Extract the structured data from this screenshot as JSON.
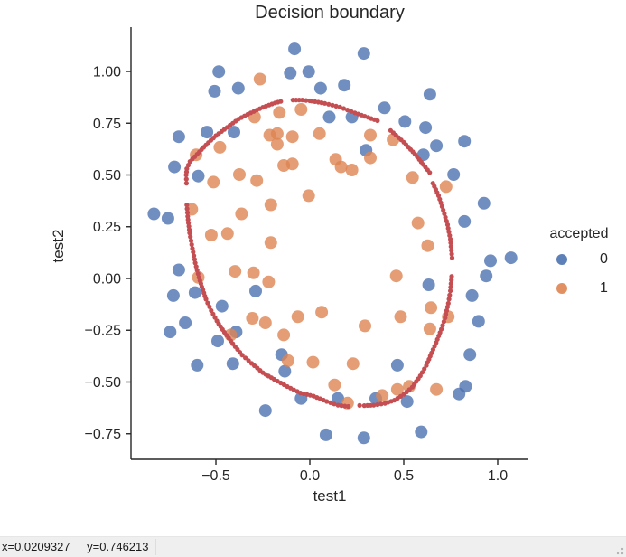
{
  "window": {
    "background": "#ffffff"
  },
  "statusbar": {
    "cursor_x_label": "x=0.0209327",
    "cursor_y_label": "y=0.746213"
  },
  "chart_data": {
    "type": "scatter",
    "title": "Decision boundary",
    "xlabel": "test1",
    "ylabel": "test2",
    "grid": false,
    "axis_color": "#262626",
    "tick_label_color": "#262626",
    "xlim": [
      -0.952,
      1.1635
    ],
    "ylim": [
      -0.8734,
      1.214
    ],
    "xticks": [
      -0.5,
      0.0,
      0.5,
      1.0
    ],
    "xtick_labels": [
      "−0.5",
      "0.0",
      "0.5",
      "1.0"
    ],
    "yticks": [
      1.0,
      0.75,
      0.5,
      0.25,
      0.0,
      -0.25,
      -0.5,
      -0.75
    ],
    "ytick_labels": [
      "1.00",
      "0.75",
      "0.50",
      "0.25",
      "0.00",
      "−0.25",
      "−0.50",
      "−0.75"
    ],
    "legend": {
      "title": "accepted",
      "position": "right",
      "entries": [
        {
          "label": "0",
          "color": "#4C72B0"
        },
        {
          "label": "1",
          "color": "#DD8452"
        }
      ]
    },
    "series": [
      {
        "name": "0",
        "color": "#4C72B0",
        "marker_radius": 7,
        "opacity": 0.8,
        "points": [
          [
            0.18376,
            0.93348
          ],
          [
            0.22408,
            0.77997
          ],
          [
            0.29896,
            0.61915
          ],
          [
            0.50634,
            0.75804
          ],
          [
            0.61578,
            0.7288
          ],
          [
            0.60426,
            0.59722
          ],
          [
            0.76555,
            0.50219
          ],
          [
            0.92684,
            0.3633
          ],
          [
            0.82316,
            0.27558
          ],
          [
            0.96141,
            0.085526
          ],
          [
            0.93836,
            0.012427
          ],
          [
            0.86348,
            -0.082602
          ],
          [
            0.89804,
            -0.20687
          ],
          [
            0.85196,
            -0.36769
          ],
          [
            0.82892,
            -0.5212
          ],
          [
            0.79435,
            -0.55775
          ],
          [
            0.59274,
            -0.7405
          ],
          [
            0.51786,
            -0.5943
          ],
          [
            0.46601,
            -0.41886
          ],
          [
            0.35081,
            -0.57968
          ],
          [
            0.28744,
            -0.76974
          ],
          [
            0.085829,
            -0.75512
          ],
          [
            0.14919,
            -0.57968
          ],
          [
            -0.13306,
            -0.4481
          ],
          [
            -0.40956,
            -0.41155
          ],
          [
            -0.39228,
            -0.25804
          ],
          [
            -0.74366,
            -0.25804
          ],
          [
            -0.69758,
            0.041667
          ],
          [
            -0.75518,
            0.2902
          ],
          [
            -0.69758,
            0.68494
          ],
          [
            -0.4038,
            0.70687
          ],
          [
            -0.38076,
            0.91886
          ],
          [
            -0.50749,
            0.90424
          ],
          [
            -0.54781,
            0.70687
          ],
          [
            0.10311,
            0.77997
          ],
          [
            0.057028,
            0.91886
          ],
          [
            -0.10426,
            0.99196
          ],
          [
            -0.081221,
            1.1089
          ],
          [
            0.28744,
            1.087
          ],
          [
            0.39689,
            0.82383
          ],
          [
            0.63882,
            0.88962
          ],
          [
            0.82316,
            0.66301
          ],
          [
            0.67339,
            0.64108
          ],
          [
            1.0709,
            0.10015
          ],
          [
            -0.046659,
            -0.57968
          ],
          [
            -0.23675,
            -0.63816
          ],
          [
            -0.15035,
            -0.36769
          ],
          [
            -0.49021,
            -0.3019
          ],
          [
            -0.46717,
            -0.13377
          ],
          [
            -0.28859,
            -0.060673
          ],
          [
            -0.61118,
            -0.067982
          ],
          [
            -0.66302,
            -0.21418
          ],
          [
            -0.59965,
            -0.41886
          ],
          [
            -0.72638,
            -0.082602
          ],
          [
            -0.83007,
            0.31213
          ],
          [
            -0.72062,
            0.53874
          ],
          [
            -0.59389,
            0.49488
          ],
          [
            -0.48445,
            0.99927
          ],
          [
            -0.0063364,
            0.99927
          ],
          [
            0.63265,
            -0.030612
          ]
        ]
      },
      {
        "name": "1",
        "color": "#DD8452",
        "marker_radius": 7,
        "opacity": 0.8,
        "points": [
          [
            0.051267,
            0.69956
          ],
          [
            -0.092742,
            0.68494
          ],
          [
            -0.21371,
            0.69225
          ],
          [
            -0.375,
            0.50219
          ],
          [
            -0.51325,
            0.46564
          ],
          [
            -0.52477,
            0.2098
          ],
          [
            -0.39804,
            0.034357
          ],
          [
            -0.30588,
            -0.19225
          ],
          [
            0.016705,
            -0.40424
          ],
          [
            0.13191,
            -0.51389
          ],
          [
            0.38537,
            -0.56506
          ],
          [
            0.52938,
            -0.5212
          ],
          [
            0.63882,
            -0.24342
          ],
          [
            0.73675,
            -0.18494
          ],
          [
            0.54666,
            0.48757
          ],
          [
            0.322,
            0.5826
          ],
          [
            0.16647,
            0.53874
          ],
          [
            -0.046659,
            0.81652
          ],
          [
            -0.17339,
            0.69956
          ],
          [
            -0.47869,
            0.63377
          ],
          [
            -0.60541,
            0.59722
          ],
          [
            -0.62846,
            0.33406
          ],
          [
            -0.59389,
            0.005117
          ],
          [
            -0.42108,
            -0.27266
          ],
          [
            -0.11578,
            -0.39693
          ],
          [
            0.20104,
            -0.60161
          ],
          [
            0.46601,
            -0.53582
          ],
          [
            0.67339,
            -0.53582
          ],
          [
            -0.13882,
            0.54605
          ],
          [
            -0.29435,
            0.77997
          ],
          [
            -0.26555,
            0.96272
          ],
          [
            -0.16187,
            0.8019
          ],
          [
            -0.17339,
            0.64839
          ],
          [
            -0.28283,
            0.47295
          ],
          [
            -0.36348,
            0.31213
          ],
          [
            -0.30012,
            0.027047
          ],
          [
            -0.23675,
            -0.21418
          ],
          [
            -0.06394,
            -0.18494
          ],
          [
            0.062788,
            -0.16301
          ],
          [
            0.22984,
            -0.41155
          ],
          [
            0.2932,
            -0.2288
          ],
          [
            0.48329,
            -0.18494
          ],
          [
            0.64459,
            -0.14108
          ],
          [
            0.46025,
            0.012427
          ],
          [
            0.6273,
            0.15863
          ],
          [
            0.57546,
            0.26827
          ],
          [
            0.72523,
            0.44371
          ],
          [
            0.22408,
            0.52412
          ],
          [
            0.44297,
            0.67032
          ],
          [
            0.322,
            0.69225
          ],
          [
            0.13767,
            0.57529
          ],
          [
            -0.0063364,
            0.39985
          ],
          [
            -0.092742,
            0.55336
          ],
          [
            -0.20795,
            0.35599
          ],
          [
            -0.20795,
            0.17325
          ],
          [
            -0.43836,
            0.21711
          ],
          [
            -0.21947,
            -0.016813
          ],
          [
            -0.13882,
            -0.27266
          ]
        ]
      }
    ],
    "boundary": {
      "name": "decision boundary contour",
      "color": "#C44E52",
      "dot_radius": 2.6,
      "dot_spacing_px": 4,
      "arcs": [
        [
          [
            0.01,
            0.857
          ],
          [
            0.08,
            0.846
          ],
          [
            0.16,
            0.828
          ],
          [
            0.24,
            0.8
          ],
          [
            0.31,
            0.778
          ],
          [
            0.36,
            0.762
          ]
        ],
        [
          [
            0.43,
            0.715
          ],
          [
            0.5,
            0.658
          ],
          [
            0.56,
            0.6
          ],
          [
            0.615,
            0.538
          ],
          [
            0.638,
            0.512
          ]
        ],
        [
          [
            0.655,
            0.46
          ],
          [
            0.685,
            0.4
          ],
          [
            0.71,
            0.33
          ],
          [
            0.733,
            0.26
          ],
          [
            0.748,
            0.19
          ],
          [
            0.757,
            0.1
          ]
        ],
        [
          [
            0.755,
            0.01
          ],
          [
            0.748,
            -0.06
          ],
          [
            0.737,
            -0.12
          ],
          [
            0.72,
            -0.19
          ],
          [
            0.7,
            -0.245
          ],
          [
            0.672,
            -0.31
          ],
          [
            0.648,
            -0.36
          ],
          [
            0.62,
            -0.42
          ],
          [
            0.588,
            -0.47
          ],
          [
            0.545,
            -0.525
          ],
          [
            0.5,
            -0.56
          ],
          [
            0.45,
            -0.588
          ],
          [
            0.4,
            -0.603
          ],
          [
            0.34,
            -0.612
          ],
          [
            0.29,
            -0.614
          ],
          [
            0.265,
            -0.613
          ]
        ],
        [
          [
            0.205,
            -0.618
          ],
          [
            0.15,
            -0.612
          ],
          [
            0.09,
            -0.594
          ],
          [
            0.02,
            -0.568
          ],
          [
            -0.05,
            -0.553
          ],
          [
            -0.12,
            -0.522
          ],
          [
            -0.19,
            -0.487
          ],
          [
            -0.25,
            -0.455
          ],
          [
            -0.31,
            -0.41
          ],
          [
            -0.36,
            -0.37
          ],
          [
            -0.41,
            -0.315
          ],
          [
            -0.455,
            -0.26
          ],
          [
            -0.495,
            -0.205
          ],
          [
            -0.525,
            -0.155
          ],
          [
            -0.553,
            -0.1
          ],
          [
            -0.575,
            -0.04
          ],
          [
            -0.59,
            0.005
          ],
          [
            -0.61,
            0.075
          ],
          [
            -0.625,
            0.145
          ],
          [
            -0.64,
            0.22
          ],
          [
            -0.65,
            0.3
          ],
          [
            -0.655,
            0.355
          ]
        ],
        [
          [
            -0.657,
            0.46
          ],
          [
            -0.658,
            0.5
          ],
          [
            -0.655,
            0.53
          ],
          [
            -0.638,
            0.565
          ],
          [
            -0.6,
            0.6
          ],
          [
            -0.553,
            0.645
          ],
          [
            -0.5,
            0.69
          ],
          [
            -0.44,
            0.73
          ],
          [
            -0.38,
            0.77
          ],
          [
            -0.315,
            0.8
          ],
          [
            -0.25,
            0.827
          ],
          [
            -0.185,
            0.848
          ],
          [
            -0.155,
            0.855
          ]
        ],
        [
          [
            -0.09,
            0.862
          ],
          [
            -0.04,
            0.862
          ],
          [
            0.0,
            0.858
          ]
        ]
      ]
    }
  }
}
